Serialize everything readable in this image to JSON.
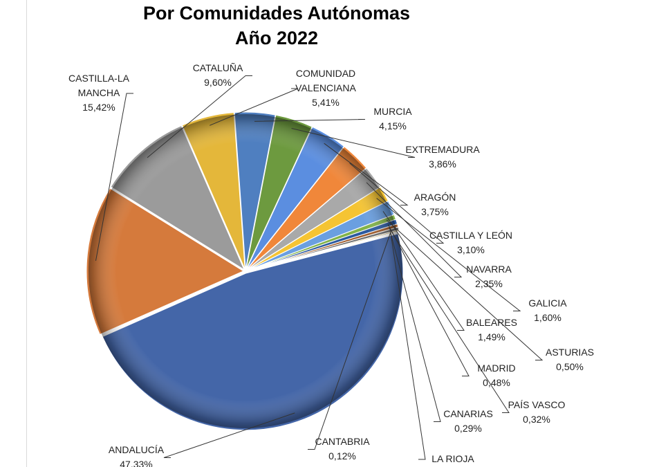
{
  "chart_data": {
    "type": "pie",
    "title": "Por Comunidades Autónomas",
    "subtitle": "Año 2022",
    "slices": [
      {
        "label": "CATALUÑA",
        "value": 9.6,
        "display": "9,60%",
        "color": "#9b9b9b"
      },
      {
        "label": "COMUNIDAD VALENCIANA",
        "value": 5.41,
        "display": "5,41%",
        "color": "#e4b73a"
      },
      {
        "label": "MURCIA",
        "value": 4.15,
        "display": "4,15%",
        "color": "#4f7fc0"
      },
      {
        "label": "EXTREMADURA",
        "value": 3.86,
        "display": "3,86%",
        "color": "#6d9a3f"
      },
      {
        "label": "ARAGÓN",
        "value": 3.75,
        "display": "3,75%",
        "color": "#5b8ee0"
      },
      {
        "label": "CASTILLA Y LEÓN",
        "value": 3.1,
        "display": "3,10%",
        "color": "#f0873a"
      },
      {
        "label": "NAVARRA",
        "value": 2.35,
        "display": "2,35%",
        "color": "#a9a9a9"
      },
      {
        "label": "GALICIA",
        "value": 1.6,
        "display": "1,60%",
        "color": "#f5c433"
      },
      {
        "label": "BALEARES",
        "value": 1.49,
        "display": "1,49%",
        "color": "#6a9fe0"
      },
      {
        "label": "ASTURIAS",
        "value": 0.5,
        "display": "0,50%",
        "color": "#82b34a"
      },
      {
        "label": "MADRID",
        "value": 0.48,
        "display": "0,48%",
        "color": "#2c5aa0"
      },
      {
        "label": "PAÍS VASCO",
        "value": 0.32,
        "display": "0,32%",
        "color": "#a05c2c"
      },
      {
        "label": "CANARIAS",
        "value": 0.29,
        "display": "0,29%",
        "color": "#6a6a6a"
      },
      {
        "label": "CANTABRIA",
        "value": 0.12,
        "display": "0,12%",
        "color": "#b08a22"
      },
      {
        "label": "LA RIOJA",
        "value": 0.03,
        "display": "",
        "color": "#3a6ab0"
      },
      {
        "label": "ANDALUCÍA",
        "value": 47.33,
        "display": "47,33%",
        "color": "#4466a8"
      },
      {
        "label": "CASTILLA-LA MANCHA",
        "value": 15.42,
        "display": "15,42%",
        "color": "#d57a3c"
      }
    ]
  }
}
